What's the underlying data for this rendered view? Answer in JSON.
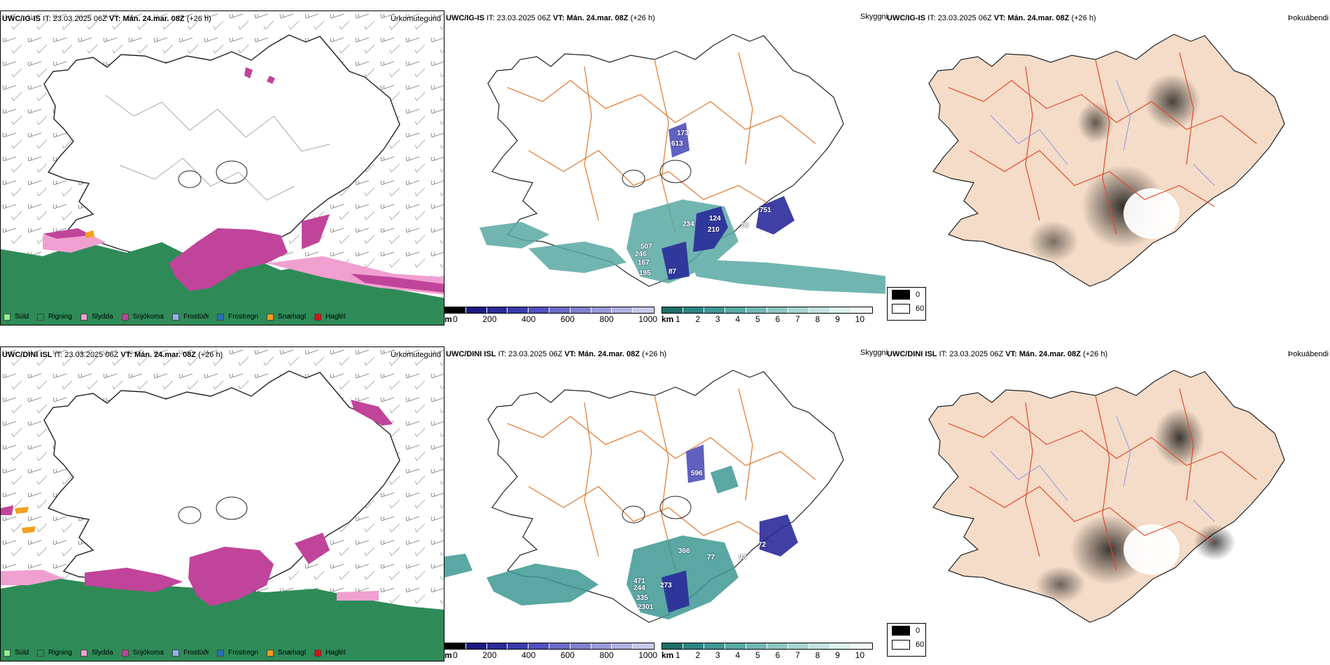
{
  "rows": [
    {
      "model": "UWC/IG-IS",
      "it_label": "IT:",
      "it_value": "23.03.2025 06Z",
      "vt_label": "VT:",
      "vt_value": "Mán. 24.mar. 08Z",
      "lead": "(+26 h)",
      "labels": [
        "507",
        "246",
        "167",
        "195",
        "87",
        "234",
        "124",
        "210",
        "95",
        "751",
        "613",
        "173"
      ]
    },
    {
      "model": "UWC/DINI ISL",
      "it_label": "IT:",
      "it_value": "23.03.2025 06Z",
      "vt_label": "VT:",
      "vt_value": "Mán. 24.mar. 08Z",
      "lead": "(+26 h)",
      "labels": [
        "366",
        "471",
        "244",
        "273",
        "335",
        "2301",
        "93",
        "72",
        "596",
        "77"
      ]
    }
  ],
  "panel_titles": {
    "precip": "Úrkomutegund",
    "ceiling": "Skyggni",
    "fog": "Þokuábendi"
  },
  "precip_legend": [
    {
      "label": "Súld",
      "color": "#90ee90"
    },
    {
      "label": "Rigning",
      "color": "#2e8b57"
    },
    {
      "label": "Slydda",
      "color": "#f0a0d0"
    },
    {
      "label": "Snjókoma",
      "color": "#c0449a"
    },
    {
      "label": "Frostúði",
      "color": "#87b8ec"
    },
    {
      "label": "Frostregn",
      "color": "#2a6ebb"
    },
    {
      "label": "Snæhagl",
      "color": "#f0a020"
    },
    {
      "label": "Haglél",
      "color": "#e01010"
    }
  ],
  "ceiling_scale": {
    "unit": "m",
    "ticks": [
      "0",
      "200",
      "400",
      "600",
      "800",
      "1000"
    ],
    "colors": [
      "#000000",
      "#1a1a80",
      "#2a2a9a",
      "#3a3ab0",
      "#5050c0",
      "#6a6ac8",
      "#8080d0",
      "#9898d8",
      "#b0b0e0",
      "#c8c8ea"
    ]
  },
  "visibility_scale": {
    "unit": "km",
    "ticks": [
      "1",
      "2",
      "3",
      "4",
      "5",
      "6",
      "7",
      "8",
      "9",
      "10"
    ],
    "colors": [
      "#1f6e6a",
      "#2e8480",
      "#3d9893",
      "#58a8a3",
      "#74b8b4",
      "#8ec6c2",
      "#a8d4d1",
      "#c2e2df",
      "#dcf0ee",
      "#f0f8f7"
    ]
  },
  "fog_legend": [
    {
      "label": "0",
      "color": "#000000"
    },
    {
      "label": "60",
      "color": "#ffffff"
    }
  ],
  "colors": {
    "land_tan": "#f4dcc8",
    "road_orange": "#e0803a",
    "river_blue": "#8898e8",
    "rain_green": "#2e8b57",
    "snow_magenta": "#c0449a",
    "sleet_pink": "#f0a0d0"
  }
}
